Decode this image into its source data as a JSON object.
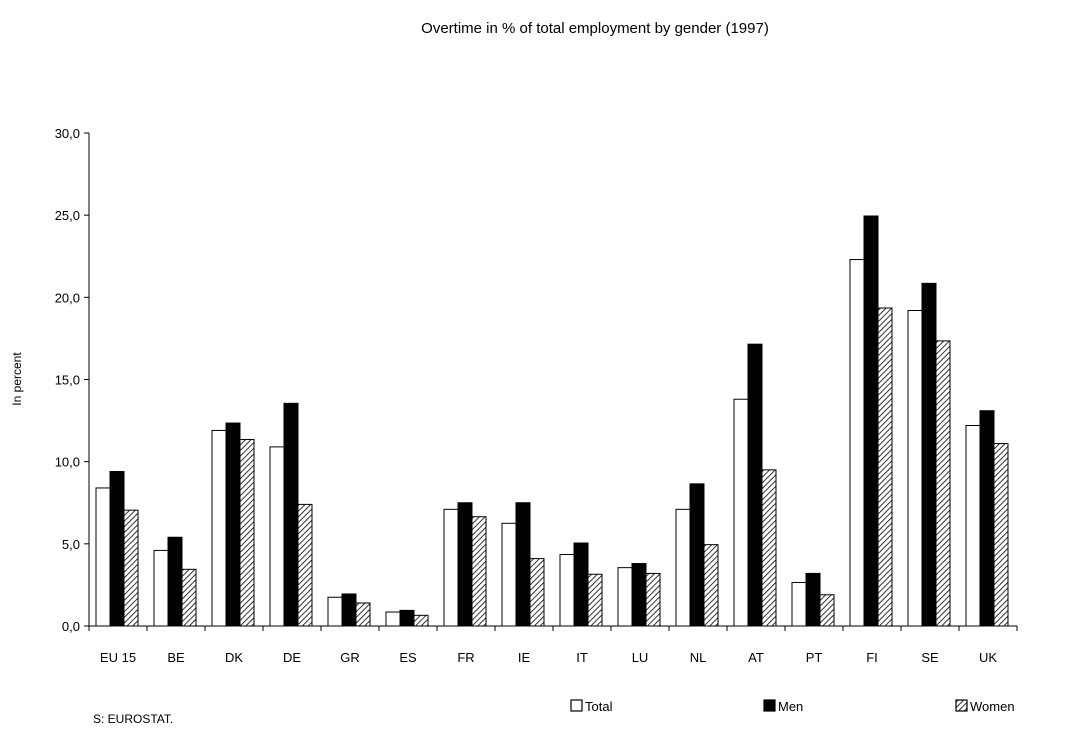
{
  "chart_data": {
    "type": "bar",
    "title": "Overtime in % of  total employment by gender (1997)",
    "xlabel": "",
    "ylabel": "In percent",
    "ylim": [
      0,
      30
    ],
    "yticks": [
      "0,0",
      "5,0",
      "10,0",
      "15,0",
      "20,0",
      "25,0",
      "30,0"
    ],
    "ytick_values": [
      0,
      5,
      10,
      15,
      20,
      25,
      30
    ],
    "categories": [
      "EU 15",
      "BE",
      "DK",
      "DE",
      "GR",
      "ES",
      "FR",
      "IE",
      "IT",
      "LU",
      "NL",
      "AT",
      "PT",
      "FI",
      "SE",
      "UK"
    ],
    "series": [
      {
        "name": "Total",
        "fill": "white",
        "values": [
          8.4,
          4.6,
          11.9,
          10.9,
          1.75,
          0.85,
          7.1,
          6.25,
          4.35,
          3.55,
          7.1,
          13.8,
          2.65,
          22.3,
          19.2,
          12.2
        ]
      },
      {
        "name": "Men",
        "fill": "black",
        "values": [
          9.4,
          5.4,
          12.35,
          13.55,
          1.95,
          0.95,
          7.5,
          7.5,
          5.05,
          3.8,
          8.65,
          17.15,
          3.2,
          24.95,
          20.85,
          13.1
        ]
      },
      {
        "name": "Women",
        "fill": "hatch",
        "values": [
          7.05,
          3.45,
          11.35,
          7.4,
          1.4,
          0.65,
          6.65,
          4.1,
          3.15,
          3.2,
          4.95,
          9.5,
          1.9,
          19.35,
          17.35,
          11.1
        ]
      }
    ],
    "grid": false,
    "legend_placement": "bottom",
    "colors": {
      "bar_stroke": "#000000",
      "men_fill": "#000000",
      "total_fill": "#ffffff"
    }
  },
  "source_note": "S: EUROSTAT."
}
